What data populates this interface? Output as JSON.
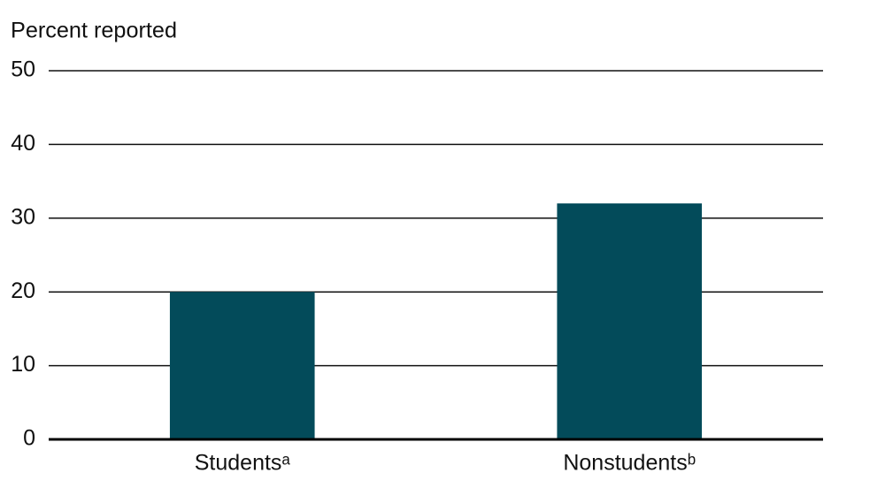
{
  "chart_data": {
    "type": "bar",
    "y_label": "Percent reported",
    "categories": [
      "Studentsᵃ",
      "Nonstudentsᵇ"
    ],
    "values": [
      20,
      32
    ],
    "color": "#034b5a",
    "ylim": [
      0,
      50
    ],
    "yticks": [
      0,
      10,
      20,
      30,
      40,
      50
    ],
    "grid": true
  }
}
